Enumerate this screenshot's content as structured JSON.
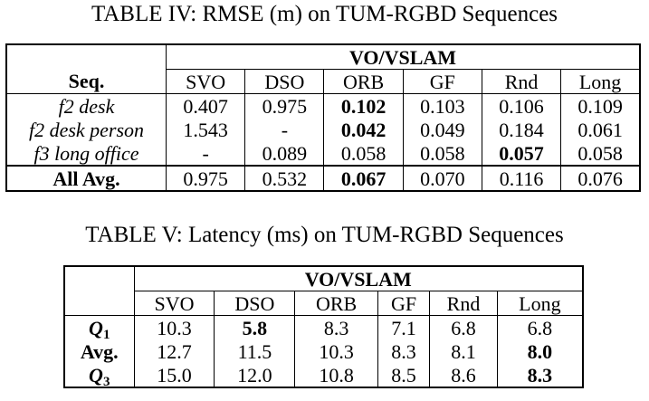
{
  "table4": {
    "caption": "TABLE IV: RMSE (m) on TUM-RGBD Sequences",
    "group_header": "VO/VSLAM",
    "row_header": "Seq.",
    "columns": [
      "SVO",
      "DSO",
      "ORB",
      "GF",
      "Rnd",
      "Long"
    ],
    "rows": [
      {
        "label": "f2 desk",
        "values": [
          "0.407",
          "0.975",
          "0.102",
          "0.103",
          "0.106",
          "0.109"
        ],
        "bold": [
          false,
          false,
          true,
          false,
          false,
          false
        ]
      },
      {
        "label": "f2 desk person",
        "values": [
          "1.543",
          "-",
          "0.042",
          "0.049",
          "0.184",
          "0.061"
        ],
        "bold": [
          false,
          false,
          true,
          false,
          false,
          false
        ]
      },
      {
        "label": "f3 long office",
        "values": [
          "-",
          "0.089",
          "0.058",
          "0.058",
          "0.057",
          "0.058"
        ],
        "bold": [
          false,
          false,
          false,
          false,
          true,
          false
        ]
      }
    ],
    "avg_row": {
      "label": "All Avg.",
      "values": [
        "0.975",
        "0.532",
        "0.067",
        "0.070",
        "0.116",
        "0.076"
      ],
      "bold": [
        false,
        false,
        true,
        false,
        false,
        false
      ]
    }
  },
  "table5": {
    "caption": "TABLE V: Latency (ms) on TUM-RGBD Sequences",
    "group_header": "VO/VSLAM",
    "columns": [
      "SVO",
      "DSO",
      "ORB",
      "GF",
      "Rnd",
      "Long"
    ],
    "rows": [
      {
        "label": "Q",
        "sub": "1",
        "values": [
          "10.3",
          "5.8",
          "8.3",
          "7.1",
          "6.8",
          "6.8"
        ],
        "bold": [
          false,
          true,
          false,
          false,
          false,
          false
        ]
      },
      {
        "label": "Avg.",
        "sub": "",
        "values": [
          "12.7",
          "11.5",
          "10.3",
          "8.3",
          "8.1",
          "8.0"
        ],
        "bold": [
          false,
          false,
          false,
          false,
          false,
          true
        ]
      },
      {
        "label": "Q",
        "sub": "3",
        "values": [
          "15.0",
          "12.0",
          "10.8",
          "8.5",
          "8.6",
          "8.3"
        ],
        "bold": [
          false,
          false,
          false,
          false,
          false,
          true
        ]
      }
    ]
  }
}
